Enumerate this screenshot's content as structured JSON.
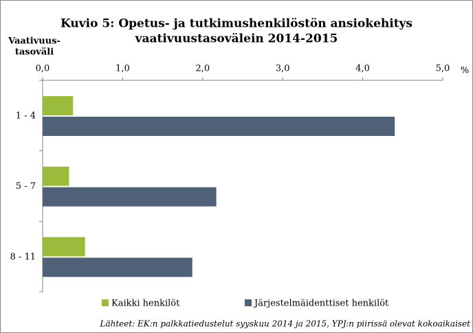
{
  "chart_data": {
    "type": "hbar",
    "title": [
      "Kuvio 5: Opetus- ja tutkimushenkilöstön ansiokehitys",
      "vaativuustasovälein 2014-2015"
    ],
    "y_label": [
      "Vaativuus-",
      "tasoväli"
    ],
    "x_unit": "%",
    "categories": [
      "1 - 4",
      "5 - 7",
      "8 - 11"
    ],
    "series": [
      {
        "name": "Kaikki henkilöt",
        "color": "#9bbb3b",
        "values": [
          0.38,
          0.33,
          0.53
        ]
      },
      {
        "name": "Järjestelmäidenttiset henkilöt",
        "color": "#4f6176",
        "values": [
          4.4,
          2.17,
          1.87
        ]
      }
    ],
    "xlim": [
      0,
      5
    ],
    "xticks": [
      {
        "value": 0,
        "label": "0,0"
      },
      {
        "value": 1,
        "label": "1,0"
      },
      {
        "value": 2,
        "label": "2,0"
      },
      {
        "value": 3,
        "label": "3,0"
      },
      {
        "value": 4,
        "label": "4,0"
      },
      {
        "value": 5,
        "label": "5,0"
      }
    ],
    "source": "Lähteet: EK:n palkkatiedustelut syyskuu 2014 ja 2015, YPJ:n piirissä olevat kokoaikaiset"
  }
}
